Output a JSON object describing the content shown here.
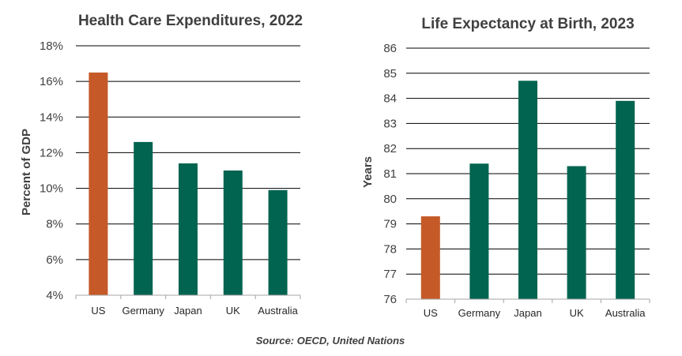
{
  "chart_data": [
    {
      "type": "bar",
      "title": "Health Care Expenditures, 2022",
      "xlabel": "",
      "ylabel": "Percent of GDP",
      "categories": [
        "US",
        "Germany",
        "Japan",
        "UK",
        "Australia"
      ],
      "values": [
        16.5,
        12.6,
        11.4,
        11.0,
        9.9
      ],
      "ylim": [
        4,
        18
      ],
      "yticks": [
        4,
        6,
        8,
        10,
        12,
        14,
        16,
        18
      ],
      "ytick_labels": [
        "4%",
        "6%",
        "8%",
        "10%",
        "12%",
        "14%",
        "16%",
        "18%"
      ],
      "bar_colors": [
        "#c55a28",
        "#006450",
        "#006450",
        "#006450",
        "#006450"
      ],
      "grid": true
    },
    {
      "type": "bar",
      "title": "Life Expectancy at Birth, 2023",
      "xlabel": "",
      "ylabel": "Years",
      "categories": [
        "US",
        "Germany",
        "Japan",
        "UK",
        "Australia"
      ],
      "values": [
        79.3,
        81.4,
        84.7,
        81.3,
        83.9
      ],
      "ylim": [
        76,
        86
      ],
      "yticks": [
        76,
        77,
        78,
        79,
        80,
        81,
        82,
        83,
        84,
        85,
        86
      ],
      "ytick_labels": [
        "76",
        "77",
        "78",
        "79",
        "80",
        "81",
        "82",
        "83",
        "84",
        "85",
        "86"
      ],
      "bar_colors": [
        "#c55a28",
        "#006450",
        "#006450",
        "#006450",
        "#006450"
      ],
      "grid": true
    }
  ],
  "source": "Source: OECD, United Nations"
}
